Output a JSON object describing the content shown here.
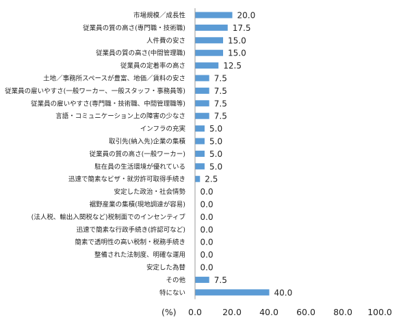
{
  "chart_data": {
    "type": "bar",
    "orientation": "horizontal",
    "categories": [
      "市場規模／成長性",
      "従業員の質の高さ(専門職・技術職)",
      "人件費の安さ",
      "従業員の質の高さ(中間管理職)",
      "従業員の定着率の高さ",
      "土地／事務所スペースが豊富、地価／賃料の安さ",
      "従業員の雇いやすさ(一般ワーカー、一般スタッフ・事務員等)",
      "従業員の雇いやすさ(専門職・技術職、中間管理職等)",
      "言語・コミュニケーション上の障害の少なさ",
      "インフラの充実",
      "取引先(納入先)企業の集積",
      "従業員の質の高さ(一般ワーカー)",
      "駐在員の生活環境が優れている",
      "迅速で簡素なビザ・就労許可取得手続き",
      "安定した政治・社会情勢",
      "裾野産業の集積(現地調達が容易)",
      "(法人税、輸出入関税など)税制面でのインセンティブ",
      "迅速で簡素な行政手続き(許認可など)",
      "簡素で透明性の高い税制・税務手続き",
      "整備された法制度、明確な運用",
      "安定した為替",
      "その他",
      "特にない"
    ],
    "values": [
      20.0,
      17.5,
      15.0,
      15.0,
      12.5,
      7.5,
      7.5,
      7.5,
      7.5,
      5.0,
      5.0,
      5.0,
      5.0,
      2.5,
      0.0,
      0.0,
      0.0,
      0.0,
      0.0,
      0.0,
      0.0,
      7.5,
      40.0
    ],
    "value_labels": [
      "20.0",
      "17.5",
      "15.0",
      "15.0",
      "12.5",
      "7.5",
      "7.5",
      "7.5",
      "7.5",
      "5.0",
      "5.0",
      "5.0",
      "5.0",
      "2.5",
      "0.0",
      "0.0",
      "0.0",
      "0.0",
      "0.0",
      "0.0",
      "0.0",
      "7.5",
      "40.0"
    ],
    "xlim": [
      0,
      100
    ],
    "x_ticks": [
      "0.0",
      "20.0",
      "40.0",
      "60.0",
      "80.0",
      "100.0"
    ],
    "xlabel": "(%)",
    "grid": false,
    "bar_color": "#5B9BD5",
    "axis_color": "#999999"
  }
}
